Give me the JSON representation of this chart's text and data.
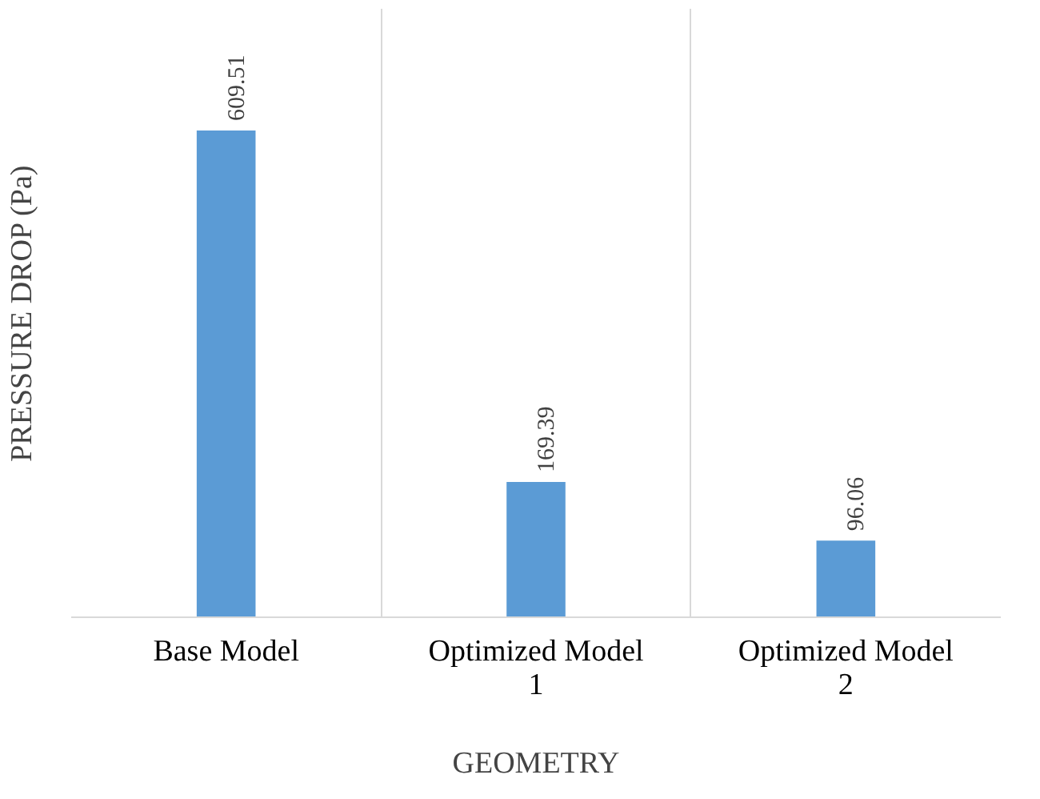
{
  "chart_data": {
    "type": "bar",
    "xlabel": "GEOMETRY",
    "ylabel": "PRESSURE DROP (Pa)",
    "categories": [
      "Base Model",
      "Optimized Model\n1",
      "Optimized Model\n2"
    ],
    "values": [
      609.51,
      169.39,
      96.06
    ],
    "color": "#5b9bd5",
    "data_labels": true,
    "grid": "x",
    "tick_labels": "x"
  }
}
